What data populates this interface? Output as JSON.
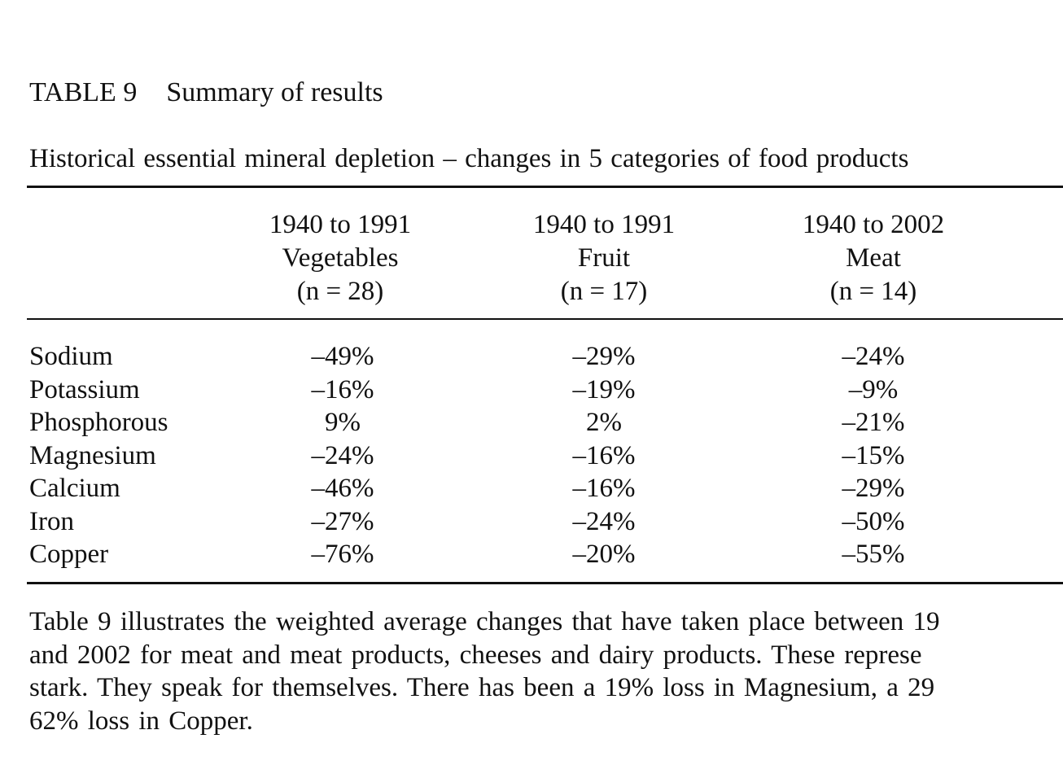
{
  "table": {
    "label": "TABLE 9",
    "title": "Summary of results",
    "subtitle": "Historical essential mineral depletion – changes in 5 categories of food products",
    "columns": [
      {
        "period": "1940 to 1991",
        "category": "Vegetables",
        "n": "(n = 28)"
      },
      {
        "period": "1940 to 1991",
        "category": "Fruit",
        "n": "(n = 17)"
      },
      {
        "period": "1940 to 2002",
        "category": "Meat",
        "n": "(n = 14)"
      }
    ],
    "rows": [
      {
        "mineral": "Sodium",
        "values": [
          "–49%",
          "–29%",
          "–24%"
        ]
      },
      {
        "mineral": "Potassium",
        "values": [
          "–16%",
          "–19%",
          "–9%"
        ]
      },
      {
        "mineral": "Phosphorous",
        "values": [
          "9%",
          "2%",
          "–21%"
        ]
      },
      {
        "mineral": "Magnesium",
        "values": [
          "–24%",
          "–16%",
          "–15%"
        ]
      },
      {
        "mineral": "Calcium",
        "values": [
          "–46%",
          "–16%",
          "–29%"
        ]
      },
      {
        "mineral": "Iron",
        "values": [
          "–27%",
          "–24%",
          "–50%"
        ]
      },
      {
        "mineral": "Copper",
        "values": [
          "–76%",
          "–20%",
          "–55%"
        ]
      }
    ]
  },
  "paragraph": {
    "lines": [
      "Table 9 illustrates the weighted average changes that have taken place between 19",
      "and 2002 for meat and meat products, cheeses and dairy products. These represe",
      "stark. They speak for themselves. There has been a 19% loss in Magnesium, a 29",
      "62% loss in Copper."
    ]
  }
}
